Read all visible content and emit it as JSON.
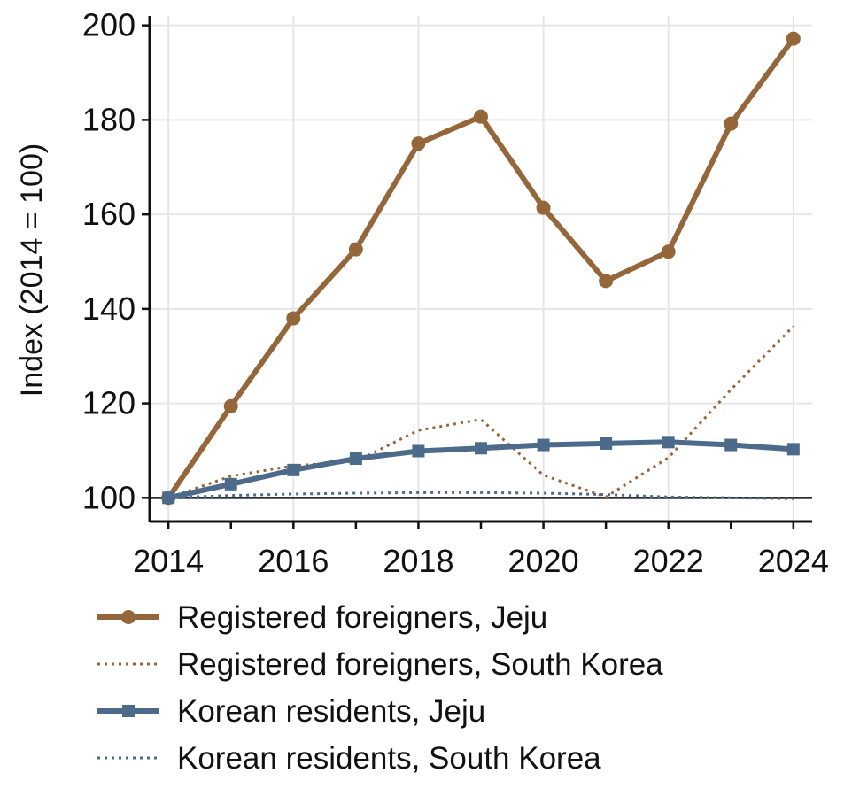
{
  "chart_data": {
    "type": "line",
    "title": "",
    "xlabel": "",
    "ylabel": "Index (2014 = 100)",
    "x": [
      2014,
      2015,
      2016,
      2017,
      2018,
      2019,
      2020,
      2021,
      2022,
      2023,
      2024
    ],
    "xticks": [
      2014,
      2016,
      2018,
      2020,
      2022,
      2024
    ],
    "xlim": [
      2013.7,
      2024.3
    ],
    "yticks": [
      100,
      120,
      140,
      160,
      180,
      200
    ],
    "ylim": [
      95,
      202
    ],
    "reference_line": 100,
    "grid": true,
    "legend_position": "bottom",
    "series": [
      {
        "name": "Registered foreigners, Jeju",
        "color": "#946639",
        "style": "solid",
        "marker": "circle",
        "values": [
          100,
          119.4,
          138,
          152.6,
          175,
          180.7,
          161.4,
          145.9,
          152.1,
          179.2,
          197.2
        ]
      },
      {
        "name": "Registered foreigners, South Korea",
        "color": "#946639",
        "style": "dotted",
        "marker": "none",
        "values": [
          100,
          104.6,
          106.8,
          107.7,
          114.3,
          116.6,
          104.8,
          100.2,
          108.5,
          122.9,
          136.3
        ]
      },
      {
        "name": "Korean residents, Jeju",
        "color": "#4c6a8a",
        "style": "solid",
        "marker": "square",
        "values": [
          100,
          102.9,
          105.9,
          108.3,
          109.9,
          110.5,
          111.2,
          111.5,
          111.8,
          111.2,
          110.3
        ]
      },
      {
        "name": "Korean residents, South Korea",
        "color": "#4c6a8a",
        "style": "dotted",
        "marker": "none",
        "values": [
          100,
          100.5,
          100.8,
          101,
          101.1,
          101.1,
          101,
          100.7,
          100.2,
          100,
          99.8
        ]
      }
    ]
  }
}
